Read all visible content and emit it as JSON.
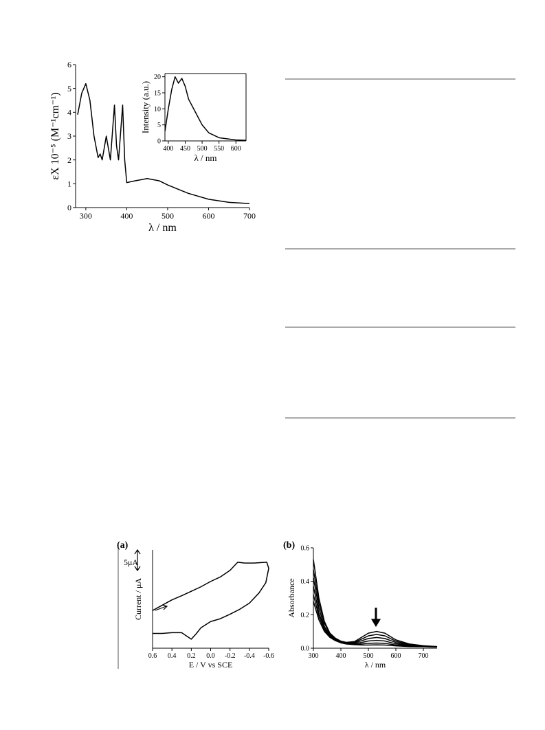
{
  "chart_data": [
    {
      "type": "line",
      "xlabel": "λ / nm",
      "ylabel": "εX 10⁻⁵ (M⁻¹cm⁻¹)",
      "x": [
        280,
        290,
        300,
        310,
        320,
        330,
        335,
        340,
        350,
        355,
        360,
        370,
        375,
        380,
        390,
        395,
        400,
        420,
        450,
        480,
        500,
        550,
        600,
        650,
        700
      ],
      "values": [
        3.9,
        4.8,
        5.2,
        4.5,
        3.0,
        2.1,
        2.25,
        2.0,
        3.0,
        2.5,
        2.0,
        4.3,
        2.6,
        2.0,
        4.3,
        2.0,
        1.05,
        1.12,
        1.22,
        1.12,
        0.95,
        0.6,
        0.35,
        0.22,
        0.17
      ],
      "color": "#000000",
      "xlim": [
        275,
        700
      ],
      "ylim": [
        0,
        6
      ],
      "xticks": [
        300,
        400,
        500,
        600,
        700
      ],
      "yticks": [
        0,
        1,
        2,
        3,
        4,
        5,
        6
      ]
    },
    {
      "type": "line",
      "xlabel": "λ / nm",
      "ylabel": "Intensity (a.u.)",
      "x": [
        390,
        400,
        410,
        420,
        430,
        440,
        450,
        460,
        480,
        500,
        520,
        550,
        600,
        630
      ],
      "values": [
        3,
        10,
        16,
        20,
        18,
        19.5,
        17,
        13,
        9,
        5,
        2.5,
        1,
        0.3,
        0.2
      ],
      "color": "#000000",
      "xlim": [
        390,
        630
      ],
      "ylim": [
        0,
        21
      ],
      "xticks": [
        400,
        450,
        500,
        550,
        600
      ],
      "yticks": [
        0,
        5,
        10,
        15,
        20
      ]
    },
    {
      "type": "line",
      "panel": "(a)",
      "annotation": "5μA",
      "xlabel": "E / V vs SCE",
      "ylabel": "Current / μA",
      "x": [
        0.6,
        0.5,
        0.4,
        0.3,
        0.2,
        0.1,
        0.0,
        -0.1,
        -0.2,
        -0.28,
        -0.35,
        -0.45,
        -0.58,
        -0.6,
        -0.57,
        -0.5,
        -0.4,
        -0.3,
        -0.2,
        -0.1,
        0.0,
        0.1,
        0.15,
        0.2,
        0.25,
        0.3,
        0.4,
        0.5,
        0.6
      ],
      "values": [
        9.2,
        10.5,
        11.8,
        12.8,
        13.9,
        15.0,
        16.3,
        17.4,
        19.0,
        21.0,
        20.8,
        20.8,
        21.0,
        19.5,
        16.0,
        13.5,
        11.0,
        9.5,
        8.3,
        7.2,
        6.5,
        5.0,
        3.5,
        2.2,
        3.0,
        3.8,
        3.8,
        3.6,
        3.6
      ],
      "color": "#000000",
      "xlim": [
        0.6,
        -0.6
      ],
      "ylim": [
        0,
        24
      ],
      "xticks": [
        0.6,
        0.4,
        0.2,
        {
          "value": 0,
          "label": "0.0"
        },
        -0.2,
        -0.4,
        -0.6
      ]
    },
    {
      "type": "line",
      "panel": "(b)",
      "xlabel": "λ / nm",
      "ylabel": "Absorbance",
      "x": [
        300,
        320,
        340,
        360,
        380,
        400,
        420,
        450,
        480,
        500,
        530,
        560,
        600,
        650,
        700,
        750
      ],
      "series": [
        {
          "color": "#000000",
          "values": [
            0.53,
            0.3,
            0.16,
            0.09,
            0.06,
            0.042,
            0.035,
            0.04,
            0.07,
            0.09,
            0.1,
            0.09,
            0.05,
            0.025,
            0.015,
            0.01
          ]
        },
        {
          "color": "#000000",
          "values": [
            0.47,
            0.27,
            0.15,
            0.085,
            0.055,
            0.04,
            0.033,
            0.036,
            0.058,
            0.074,
            0.082,
            0.074,
            0.042,
            0.021,
            0.013,
            0.009
          ]
        },
        {
          "color": "#000000",
          "values": [
            0.42,
            0.24,
            0.13,
            0.08,
            0.052,
            0.038,
            0.031,
            0.032,
            0.047,
            0.058,
            0.064,
            0.058,
            0.034,
            0.018,
            0.012,
            0.008
          ]
        },
        {
          "color": "#000000",
          "values": [
            0.37,
            0.21,
            0.12,
            0.075,
            0.05,
            0.036,
            0.029,
            0.028,
            0.036,
            0.043,
            0.047,
            0.043,
            0.026,
            0.015,
            0.011,
            0.008
          ]
        },
        {
          "color": "#000000",
          "values": [
            0.32,
            0.19,
            0.11,
            0.07,
            0.047,
            0.034,
            0.027,
            0.024,
            0.026,
            0.029,
            0.031,
            0.029,
            0.019,
            0.012,
            0.01,
            0.007
          ]
        },
        {
          "color": "#000000",
          "values": [
            0.28,
            0.17,
            0.1,
            0.065,
            0.045,
            0.032,
            0.025,
            0.021,
            0.019,
            0.019,
            0.02,
            0.019,
            0.014,
            0.01,
            0.009,
            0.007
          ]
        }
      ],
      "xlim": [
        300,
        750
      ],
      "ylim": [
        0,
        0.6
      ],
      "xticks": [
        300,
        400,
        500,
        600,
        700
      ],
      "yticks": [
        {
          "value": 0,
          "label": "0.0"
        },
        0.2,
        0.4,
        0.6
      ]
    }
  ]
}
